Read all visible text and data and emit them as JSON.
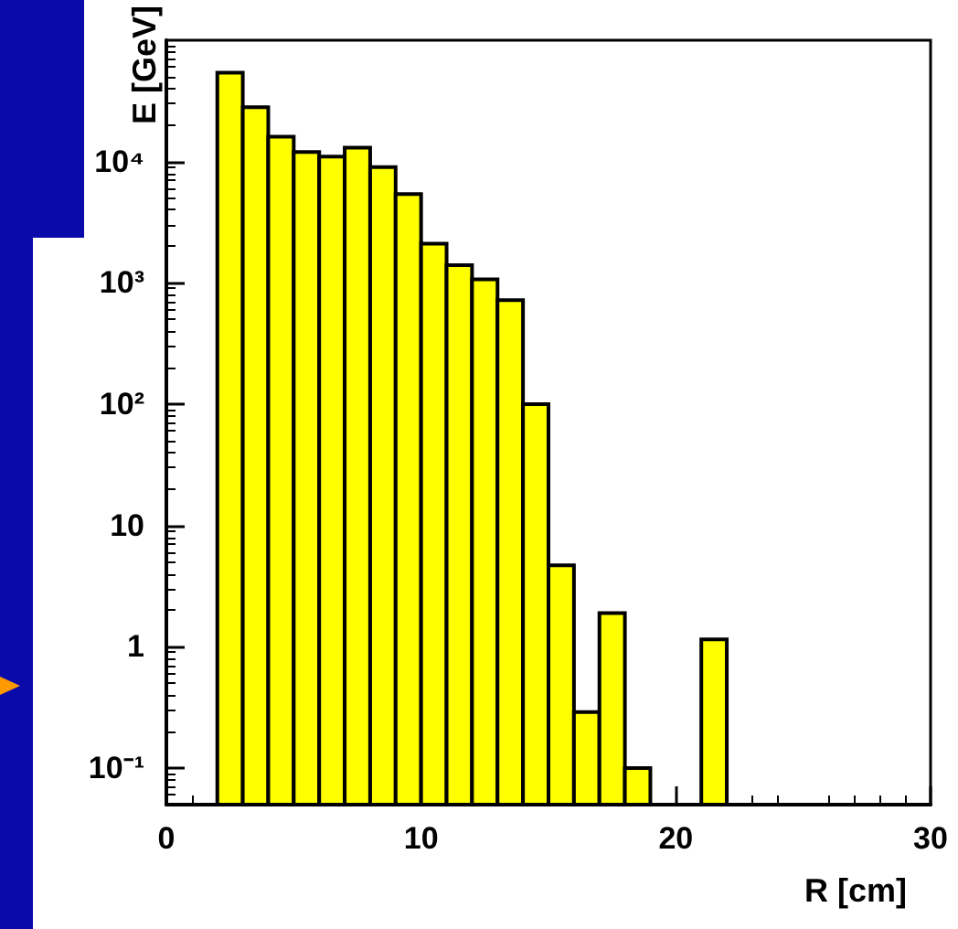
{
  "chart_data": {
    "type": "histogram",
    "xlabel": "R [cm]",
    "ylabel": "E [GeV]",
    "bins": [
      2,
      3,
      4,
      5,
      6,
      7,
      8,
      9,
      10,
      11,
      12,
      13,
      14,
      15,
      16,
      17,
      18,
      19,
      20,
      21,
      22
    ],
    "values": [
      54000,
      28000,
      16000,
      12000,
      11000,
      13000,
      9000,
      5400,
      2100,
      1400,
      1070,
      720,
      100,
      4.7,
      0.29,
      1.9,
      0.1,
      null,
      null,
      1.15
    ],
    "color": "#ffff00",
    "xlim": [
      0,
      30
    ],
    "xticks": [
      0,
      10,
      20,
      30
    ],
    "ylim": [
      0.05,
      100000
    ],
    "yticks": [
      {
        "value": 0.1,
        "label": "10⁻¹"
      },
      {
        "value": 1,
        "label": "1"
      },
      {
        "value": 10,
        "label": "10"
      },
      {
        "value": 100,
        "label": "10²"
      },
      {
        "value": 1000,
        "label": "10³"
      },
      {
        "value": 10000,
        "label": "10⁴"
      }
    ],
    "log": true
  }
}
